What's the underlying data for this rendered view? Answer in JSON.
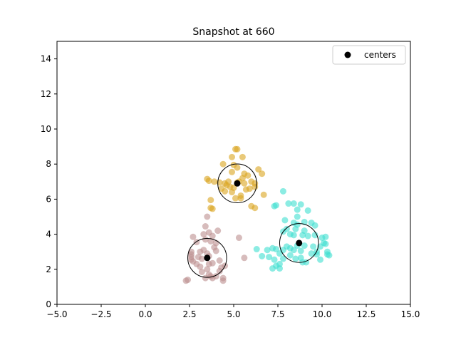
{
  "chart_data": {
    "type": "scatter",
    "title": "Snapshot at 660",
    "xlabel": "",
    "ylabel": "",
    "xlim": [
      -5,
      15
    ],
    "ylim": [
      0,
      15
    ],
    "xticks": [
      -5.0,
      -2.5,
      0.0,
      2.5,
      5.0,
      7.5,
      10.0,
      12.5,
      15.0
    ],
    "xtick_labels": [
      "−5.0",
      "−2.5",
      "0.0",
      "2.5",
      "5.0",
      "7.5",
      "10.0",
      "12.5",
      "15.0"
    ],
    "yticks": [
      0,
      2,
      4,
      6,
      8,
      10,
      12,
      14
    ],
    "ytick_labels": [
      "0",
      "2",
      "4",
      "6",
      "8",
      "10",
      "12",
      "14"
    ],
    "grid": false,
    "legend": {
      "position": "upper-right",
      "entries": [
        {
          "label": "centers",
          "color": "#000000"
        }
      ]
    },
    "circle_radius": 1.1,
    "series": [
      {
        "color": "#daa520",
        "points": [
          [
            5.1,
            8.85
          ],
          [
            5.2,
            8.85
          ],
          [
            4.9,
            8.4
          ],
          [
            5.5,
            8.4
          ],
          [
            4.4,
            8.0
          ],
          [
            5.0,
            7.95
          ],
          [
            5.2,
            7.8
          ],
          [
            4.9,
            7.55
          ],
          [
            5.6,
            7.45
          ],
          [
            5.8,
            7.35
          ],
          [
            6.4,
            7.7
          ],
          [
            6.6,
            7.45
          ],
          [
            3.5,
            7.15
          ],
          [
            3.6,
            7.05
          ],
          [
            3.9,
            7.0
          ],
          [
            4.2,
            6.95
          ],
          [
            4.5,
            6.9
          ],
          [
            4.6,
            6.8
          ],
          [
            4.8,
            6.7
          ],
          [
            5.0,
            6.65
          ],
          [
            5.3,
            7.0
          ],
          [
            5.6,
            6.9
          ],
          [
            6.0,
            7.0
          ],
          [
            6.2,
            6.9
          ],
          [
            4.3,
            6.6
          ],
          [
            4.5,
            6.45
          ],
          [
            4.9,
            6.4
          ],
          [
            5.4,
            6.2
          ],
          [
            5.7,
            6.55
          ],
          [
            5.9,
            6.6
          ],
          [
            6.2,
            6.7
          ],
          [
            5.1,
            6.05
          ],
          [
            5.4,
            6.05
          ],
          [
            6.7,
            6.25
          ],
          [
            3.7,
            5.95
          ],
          [
            6.0,
            5.6
          ],
          [
            6.2,
            5.5
          ],
          [
            3.7,
            5.5
          ],
          [
            3.8,
            5.45
          ],
          [
            5.2,
            6.95
          ],
          [
            5.5,
            7.2
          ],
          [
            4.7,
            7.0
          ]
        ]
      },
      {
        "color": "#bc8f8f",
        "points": [
          [
            3.5,
            5.0
          ],
          [
            3.4,
            4.45
          ],
          [
            4.1,
            4.2
          ],
          [
            3.6,
            4.1
          ],
          [
            3.3,
            4.0
          ],
          [
            2.7,
            3.85
          ],
          [
            3.8,
            3.9
          ],
          [
            3.4,
            3.7
          ],
          [
            3.7,
            3.6
          ],
          [
            4.0,
            3.5
          ],
          [
            3.9,
            3.25
          ],
          [
            4.0,
            3.05
          ],
          [
            2.9,
            3.55
          ],
          [
            3.1,
            3.0
          ],
          [
            3.3,
            3.1
          ],
          [
            3.5,
            2.9
          ],
          [
            3.6,
            2.75
          ],
          [
            2.6,
            3.0
          ],
          [
            2.6,
            2.85
          ],
          [
            2.6,
            2.7
          ],
          [
            2.6,
            2.55
          ],
          [
            2.7,
            2.45
          ],
          [
            3.0,
            2.7
          ],
          [
            3.2,
            2.6
          ],
          [
            3.6,
            2.3
          ],
          [
            3.8,
            2.35
          ],
          [
            4.2,
            2.5
          ],
          [
            4.3,
            2.1
          ],
          [
            4.5,
            2.2
          ],
          [
            2.9,
            2.3
          ],
          [
            3.1,
            2.15
          ],
          [
            3.2,
            1.85
          ],
          [
            3.5,
            2.0
          ],
          [
            3.6,
            1.7
          ],
          [
            3.7,
            1.6
          ],
          [
            4.0,
            1.6
          ],
          [
            4.2,
            1.9
          ],
          [
            2.3,
            1.35
          ],
          [
            2.4,
            1.4
          ],
          [
            3.4,
            1.5
          ],
          [
            3.8,
            1.5
          ],
          [
            4.4,
            1.5
          ],
          [
            4.4,
            1.35
          ],
          [
            5.6,
            2.65
          ],
          [
            5.3,
            3.8
          ]
        ]
      },
      {
        "color": "#40e0d0",
        "points": [
          [
            7.8,
            6.45
          ],
          [
            8.1,
            5.75
          ],
          [
            8.4,
            5.75
          ],
          [
            8.8,
            5.7
          ],
          [
            7.3,
            5.6
          ],
          [
            7.4,
            5.65
          ],
          [
            8.6,
            5.4
          ],
          [
            9.2,
            5.35
          ],
          [
            8.6,
            5.0
          ],
          [
            7.9,
            4.8
          ],
          [
            8.4,
            4.65
          ],
          [
            8.6,
            4.55
          ],
          [
            9.0,
            4.7
          ],
          [
            9.4,
            4.65
          ],
          [
            9.6,
            4.5
          ],
          [
            7.8,
            4.15
          ],
          [
            8.0,
            4.3
          ],
          [
            8.2,
            4.0
          ],
          [
            8.4,
            3.95
          ],
          [
            8.9,
            3.95
          ],
          [
            9.2,
            3.9
          ],
          [
            9.6,
            3.95
          ],
          [
            10.0,
            3.8
          ],
          [
            10.2,
            3.85
          ],
          [
            10.1,
            3.5
          ],
          [
            10.2,
            3.45
          ],
          [
            10.3,
            3.0
          ],
          [
            10.4,
            2.8
          ],
          [
            9.9,
            2.55
          ],
          [
            9.7,
            2.85
          ],
          [
            9.5,
            3.3
          ],
          [
            9.7,
            3.0
          ],
          [
            8.8,
            3.05
          ],
          [
            8.6,
            3.35
          ],
          [
            9.0,
            3.35
          ],
          [
            8.4,
            3.1
          ],
          [
            8.2,
            3.2
          ],
          [
            8.0,
            3.3
          ],
          [
            7.8,
            3.1
          ],
          [
            8.2,
            2.8
          ],
          [
            8.5,
            2.6
          ],
          [
            7.4,
            3.15
          ],
          [
            7.6,
            2.9
          ],
          [
            7.8,
            2.6
          ],
          [
            7.3,
            2.55
          ],
          [
            7.0,
            2.7
          ],
          [
            6.9,
            3.1
          ],
          [
            7.2,
            3.2
          ],
          [
            7.6,
            2.3
          ],
          [
            7.4,
            2.2
          ],
          [
            7.2,
            2.05
          ],
          [
            7.6,
            2.05
          ],
          [
            6.3,
            3.15
          ],
          [
            6.6,
            2.75
          ],
          [
            8.9,
            2.4
          ],
          [
            9.1,
            2.4
          ],
          [
            9.4,
            2.9
          ],
          [
            8.8,
            2.65
          ],
          [
            9.9,
            3.3
          ],
          [
            10.3,
            2.85
          ],
          [
            8.5,
            4.3
          ],
          [
            9.0,
            4.2
          ]
        ]
      }
    ],
    "centers": [
      [
        5.2,
        6.9
      ],
      [
        3.5,
        2.65
      ],
      [
        8.7,
        3.5
      ]
    ]
  }
}
